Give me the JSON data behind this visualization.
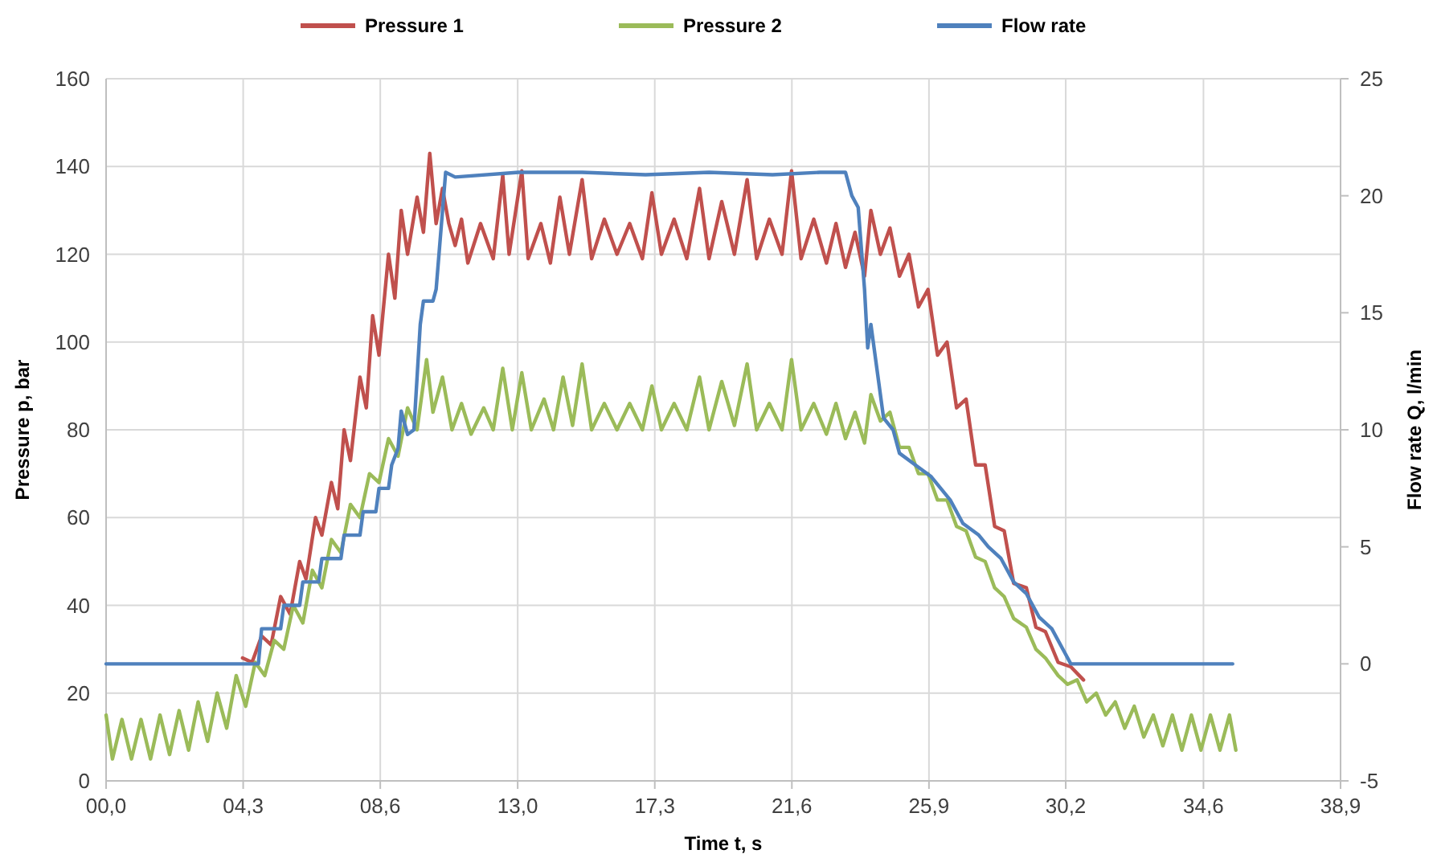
{
  "chart_data": {
    "type": "line",
    "xlabel": "Time t, s",
    "ylabel": "Pressure p, bar",
    "y2label": "Flow rate Q, l/min",
    "xlim": [
      0,
      38.9
    ],
    "xticks": [
      {
        "value": 0,
        "label": "00,0"
      },
      {
        "value": 4.32,
        "label": "04,3"
      },
      {
        "value": 8.64,
        "label": "08,6"
      },
      {
        "value": 12.97,
        "label": "13,0"
      },
      {
        "value": 17.29,
        "label": "17,3"
      },
      {
        "value": 21.61,
        "label": "21,6"
      },
      {
        "value": 25.93,
        "label": "25,9"
      },
      {
        "value": 30.24,
        "label": "30,2"
      },
      {
        "value": 34.58,
        "label": "34,6"
      },
      {
        "value": 38.9,
        "label": "38,9"
      }
    ],
    "ylim": [
      0,
      160
    ],
    "yticks": [
      0,
      20,
      40,
      60,
      80,
      100,
      120,
      140,
      160
    ],
    "y2lim": [
      -5,
      25
    ],
    "y2ticks": [
      -5,
      0,
      5,
      10,
      15,
      20,
      25
    ],
    "grid": true,
    "legend": "top",
    "marker": "none",
    "line_style": "solid",
    "series": [
      {
        "name": "Pressure 1",
        "color": "#c0504d",
        "x": [
          4.3,
          4.6,
          4.9,
          5.2,
          5.5,
          5.8,
          6.1,
          6.3,
          6.6,
          6.8,
          7.1,
          7.3,
          7.5,
          7.7,
          8.0,
          8.2,
          8.4,
          8.6,
          8.9,
          9.1,
          9.3,
          9.5,
          9.8,
          10.0,
          10.2,
          10.4,
          10.6,
          10.8,
          11.0,
          11.2,
          11.4,
          11.8,
          12.2,
          12.5,
          12.7,
          13.1,
          13.3,
          13.7,
          14.0,
          14.3,
          14.6,
          15.0,
          15.3,
          15.7,
          16.1,
          16.5,
          16.9,
          17.2,
          17.5,
          17.9,
          18.3,
          18.7,
          19.0,
          19.4,
          19.8,
          20.2,
          20.5,
          20.9,
          21.3,
          21.6,
          21.9,
          22.3,
          22.7,
          23.0,
          23.3,
          23.6,
          23.9,
          24.1,
          24.4,
          24.7,
          25.0,
          25.3,
          25.6,
          25.9,
          26.2,
          26.5,
          26.8,
          27.1,
          27.4,
          27.7,
          28.0,
          28.3,
          28.6,
          29.0,
          29.3,
          29.6,
          30.0,
          30.4,
          30.8
        ],
        "values": [
          28,
          27,
          33,
          31,
          42,
          38,
          50,
          46,
          60,
          56,
          68,
          62,
          80,
          73,
          92,
          85,
          106,
          97,
          120,
          110,
          130,
          120,
          133,
          125,
          143,
          127,
          135,
          127,
          122,
          128,
          118,
          127,
          119,
          138,
          120,
          139,
          119,
          127,
          118,
          133,
          120,
          137,
          119,
          128,
          120,
          127,
          119,
          134,
          120,
          128,
          119,
          135,
          119,
          132,
          120,
          137,
          119,
          128,
          120,
          139,
          119,
          128,
          118,
          127,
          117,
          125,
          115,
          130,
          120,
          126,
          115,
          120,
          108,
          112,
          97,
          100,
          85,
          87,
          72,
          72,
          58,
          57,
          45,
          44,
          35,
          34,
          27,
          26,
          23
        ]
      },
      {
        "name": "Pressure 2",
        "color": "#9bbb59",
        "x": [
          0,
          0.2,
          0.5,
          0.8,
          1.1,
          1.4,
          1.7,
          2.0,
          2.3,
          2.6,
          2.9,
          3.2,
          3.5,
          3.8,
          4.1,
          4.4,
          4.7,
          5.0,
          5.3,
          5.6,
          5.9,
          6.2,
          6.5,
          6.8,
          7.1,
          7.4,
          7.7,
          8.0,
          8.3,
          8.6,
          8.9,
          9.2,
          9.5,
          9.8,
          10.1,
          10.3,
          10.6,
          10.9,
          11.2,
          11.5,
          11.9,
          12.2,
          12.5,
          12.8,
          13.1,
          13.4,
          13.8,
          14.1,
          14.4,
          14.7,
          15.0,
          15.3,
          15.7,
          16.1,
          16.5,
          16.9,
          17.2,
          17.5,
          17.9,
          18.3,
          18.7,
          19.0,
          19.4,
          19.8,
          20.2,
          20.5,
          20.9,
          21.3,
          21.6,
          21.9,
          22.3,
          22.7,
          23.0,
          23.3,
          23.6,
          23.9,
          24.1,
          24.4,
          24.7,
          25.0,
          25.3,
          25.6,
          25.9,
          26.2,
          26.5,
          26.8,
          27.1,
          27.4,
          27.7,
          28.0,
          28.3,
          28.6,
          29.0,
          29.3,
          29.6,
          30.0,
          30.3,
          30.6,
          30.9,
          31.2,
          31.5,
          31.8,
          32.1,
          32.4,
          32.7,
          33.0,
          33.3,
          33.6,
          33.9,
          34.2,
          34.5,
          34.8,
          35.1,
          35.4,
          35.6
        ],
        "values": [
          15,
          5,
          14,
          5,
          14,
          5,
          15,
          6,
          16,
          7,
          18,
          9,
          20,
          12,
          24,
          17,
          27,
          24,
          32,
          30,
          40,
          36,
          48,
          44,
          55,
          52,
          63,
          60,
          70,
          68,
          78,
          74,
          85,
          80,
          96,
          84,
          92,
          80,
          86,
          79,
          85,
          80,
          94,
          80,
          93,
          80,
          87,
          80,
          92,
          81,
          95,
          80,
          86,
          80,
          86,
          80,
          90,
          80,
          86,
          80,
          92,
          80,
          91,
          81,
          95,
          80,
          86,
          80,
          96,
          80,
          86,
          79,
          86,
          78,
          84,
          77,
          88,
          82,
          84,
          76,
          76,
          70,
          70,
          64,
          64,
          58,
          57,
          51,
          50,
          44,
          42,
          37,
          35,
          30,
          28,
          24,
          22,
          23,
          18,
          20,
          15,
          18,
          12,
          17,
          10,
          15,
          8,
          15,
          7,
          15,
          7,
          15,
          7,
          15,
          7
        ]
      },
      {
        "name": "Flow rate",
        "color": "#4f81bd",
        "axis": "y2",
        "x": [
          0,
          4.8,
          4.9,
          5.5,
          5.6,
          6.1,
          6.2,
          6.7,
          6.8,
          7.4,
          7.5,
          8.0,
          8.1,
          8.5,
          8.6,
          8.9,
          9.0,
          9.2,
          9.3,
          9.5,
          9.7,
          9.9,
          10.0,
          10.3,
          10.4,
          10.7,
          11.0,
          13,
          15,
          17,
          19,
          21,
          22.5,
          23.3,
          23.5,
          23.7,
          23.9,
          24.0,
          24.1,
          24.3,
          24.5,
          24.8,
          25.0,
          25.5,
          26.0,
          26.3,
          26.6,
          27.0,
          27.5,
          27.8,
          28.2,
          28.6,
          29.0,
          29.4,
          29.8,
          30.2,
          30.4,
          35.5
        ],
        "values": [
          0,
          0,
          1.5,
          1.5,
          2.5,
          2.5,
          3.5,
          3.5,
          4.5,
          4.5,
          5.5,
          5.5,
          6.5,
          6.5,
          7.5,
          7.5,
          8.5,
          9.2,
          10.8,
          9.8,
          10,
          14.5,
          15.5,
          15.5,
          16,
          21,
          20.8,
          21,
          21,
          20.9,
          21,
          20.9,
          21,
          21,
          20,
          19.5,
          16,
          13.5,
          14.5,
          12.5,
          10.5,
          10,
          9,
          8.5,
          8,
          7.5,
          7,
          6,
          5.5,
          5,
          4.5,
          3.5,
          3,
          2,
          1.5,
          0.5,
          0,
          0
        ]
      }
    ]
  }
}
